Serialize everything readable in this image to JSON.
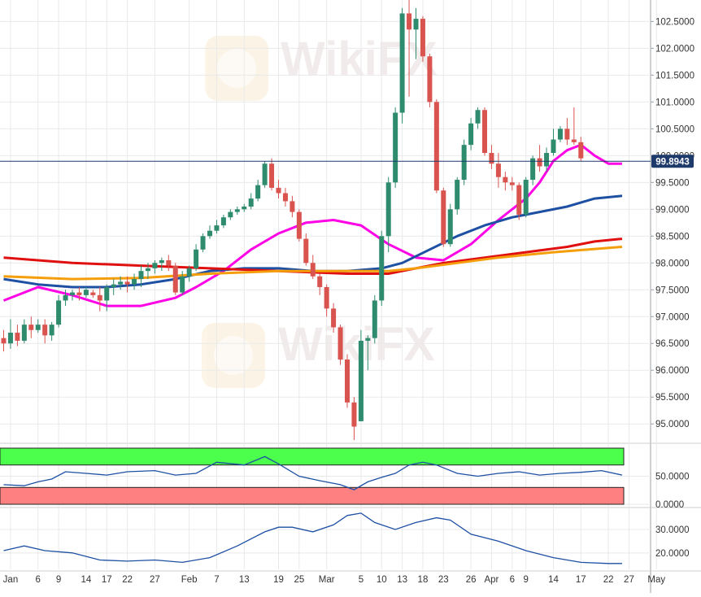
{
  "chart_data": [
    {
      "type": "candlestick",
      "title": "",
      "y_ticks": [
        "102.5000",
        "102.0000",
        "101.5000",
        "101.0000",
        "100.5000",
        "100.0000",
        "99.5000",
        "99.0000",
        "98.5000",
        "98.0000",
        "97.5000",
        "97.0000",
        "96.5000",
        "96.0000",
        "95.5000",
        "95.0000"
      ],
      "ylim": [
        94.7,
        102.9
      ],
      "current_price": "99.8943",
      "x_ticks": [
        "Jan",
        "6",
        "9",
        "14",
        "17",
        "22",
        "27",
        "Feb",
        "7",
        "13",
        "19",
        "25",
        "Mar",
        "5",
        "10",
        "13",
        "18",
        "23",
        "26",
        "Apr",
        "6",
        "9",
        "14",
        "17",
        "22",
        "27",
        "May"
      ],
      "candles": [
        [
          96.6,
          96.75,
          96.35,
          96.5
        ],
        [
          96.5,
          96.95,
          96.4,
          96.7
        ],
        [
          96.7,
          96.85,
          96.45,
          96.55
        ],
        [
          96.55,
          96.95,
          96.5,
          96.85
        ],
        [
          96.85,
          97.0,
          96.6,
          96.75
        ],
        [
          96.75,
          96.95,
          96.7,
          96.85
        ],
        [
          96.85,
          96.95,
          96.5,
          96.65
        ],
        [
          96.65,
          96.9,
          96.55,
          96.85
        ],
        [
          96.85,
          97.4,
          96.8,
          97.3
        ],
        [
          97.3,
          97.5,
          97.2,
          97.4
        ],
        [
          97.4,
          97.5,
          97.3,
          97.45
        ],
        [
          97.45,
          97.55,
          97.3,
          97.4
        ],
        [
          97.4,
          97.55,
          97.35,
          97.5
        ],
        [
          97.45,
          97.5,
          97.35,
          97.4
        ],
        [
          97.4,
          97.55,
          97.1,
          97.3
        ],
        [
          97.3,
          97.6,
          97.1,
          97.55
        ],
        [
          97.55,
          97.7,
          97.4,
          97.6
        ],
        [
          97.6,
          97.75,
          97.5,
          97.65
        ],
        [
          97.65,
          97.75,
          97.45,
          97.6
        ],
        [
          97.6,
          97.8,
          97.5,
          97.7
        ],
        [
          97.7,
          97.95,
          97.55,
          97.85
        ],
        [
          97.85,
          98.0,
          97.7,
          97.9
        ],
        [
          97.9,
          98.05,
          97.8,
          98.0
        ],
        [
          98.0,
          98.1,
          97.85,
          98.05
        ],
        [
          98.05,
          98.15,
          97.85,
          97.95
        ],
        [
          97.95,
          98.0,
          97.4,
          97.45
        ],
        [
          97.45,
          97.85,
          97.4,
          97.75
        ],
        [
          97.75,
          97.95,
          97.65,
          97.9
        ],
        [
          97.9,
          98.35,
          97.85,
          98.25
        ],
        [
          98.25,
          98.55,
          98.2,
          98.5
        ],
        [
          98.5,
          98.7,
          98.45,
          98.6
        ],
        [
          98.6,
          98.8,
          98.55,
          98.7
        ],
        [
          98.7,
          98.9,
          98.65,
          98.85
        ],
        [
          98.85,
          99.0,
          98.8,
          98.95
        ],
        [
          98.95,
          99.05,
          98.9,
          99.0
        ],
        [
          99.0,
          99.1,
          98.95,
          99.05
        ],
        [
          99.05,
          99.3,
          99.0,
          99.2
        ],
        [
          99.2,
          99.55,
          99.15,
          99.45
        ],
        [
          99.45,
          99.9,
          99.4,
          99.85
        ],
        [
          99.85,
          99.95,
          99.35,
          99.4
        ],
        [
          99.4,
          99.55,
          99.2,
          99.3
        ],
        [
          99.3,
          99.4,
          99.05,
          99.15
        ],
        [
          99.15,
          99.25,
          98.85,
          98.95
        ],
        [
          98.95,
          99.0,
          98.4,
          98.45
        ],
        [
          98.45,
          98.55,
          97.95,
          98.0
        ],
        [
          98.0,
          98.15,
          97.7,
          97.75
        ],
        [
          97.75,
          97.8,
          97.4,
          97.55
        ],
        [
          97.55,
          97.6,
          97.0,
          97.15
        ],
        [
          97.15,
          97.25,
          96.7,
          96.8
        ],
        [
          96.8,
          96.85,
          96.1,
          96.2
        ],
        [
          96.2,
          96.3,
          95.3,
          95.4
        ],
        [
          95.4,
          95.5,
          94.7,
          94.95
        ],
        [
          95.05,
          96.75,
          95.05,
          96.55
        ],
        [
          96.55,
          96.65,
          96.0,
          96.6
        ],
        [
          96.6,
          97.4,
          96.5,
          97.3
        ],
        [
          97.3,
          98.6,
          97.2,
          98.5
        ],
        [
          98.5,
          99.6,
          98.2,
          99.5
        ],
        [
          99.5,
          100.9,
          99.4,
          100.8
        ],
        [
          100.8,
          102.75,
          100.6,
          102.65
        ],
        [
          102.65,
          102.95,
          101.1,
          102.35
        ],
        [
          102.35,
          102.75,
          101.8,
          102.55
        ],
        [
          102.55,
          102.6,
          101.75,
          101.85
        ],
        [
          101.85,
          101.9,
          100.9,
          101.0
        ],
        [
          101.0,
          101.05,
          99.3,
          99.35
        ],
        [
          99.35,
          99.4,
          98.3,
          98.35
        ],
        [
          98.35,
          99.1,
          98.3,
          99.0
        ],
        [
          99.0,
          99.6,
          98.9,
          99.55
        ],
        [
          99.55,
          100.3,
          99.45,
          100.2
        ],
        [
          100.2,
          100.7,
          100.1,
          100.6
        ],
        [
          100.6,
          100.9,
          100.5,
          100.85
        ],
        [
          100.85,
          100.9,
          100.0,
          100.05
        ],
        [
          100.05,
          100.2,
          99.75,
          99.85
        ],
        [
          99.85,
          100.05,
          99.4,
          99.6
        ],
        [
          99.6,
          99.7,
          99.35,
          99.5
        ],
        [
          99.5,
          99.6,
          99.35,
          99.45
        ],
        [
          99.45,
          99.5,
          98.8,
          98.9
        ],
        [
          98.9,
          99.6,
          98.85,
          99.55
        ],
        [
          99.55,
          100.0,
          99.45,
          99.95
        ],
        [
          99.95,
          100.2,
          99.7,
          99.8
        ],
        [
          99.8,
          100.15,
          99.7,
          100.05
        ],
        [
          100.05,
          100.5,
          100.0,
          100.3
        ],
        [
          100.3,
          100.55,
          100.25,
          100.5
        ],
        [
          100.5,
          100.7,
          100.2,
          100.3
        ],
        [
          100.3,
          100.9,
          100.2,
          100.25
        ],
        [
          100.25,
          100.35,
          99.9,
          99.95
        ]
      ],
      "moving_averages": [
        {
          "color": "#ff00e6",
          "points": [
            [
              0,
              97.3
            ],
            [
              5,
              97.55
            ],
            [
              10,
              97.4
            ],
            [
              15,
              97.2
            ],
            [
              20,
              97.2
            ],
            [
              25,
              97.35
            ],
            [
              28,
              97.55
            ],
            [
              32,
              97.85
            ],
            [
              36,
              98.25
            ],
            [
              40,
              98.55
            ],
            [
              44,
              98.75
            ],
            [
              48,
              98.8
            ],
            [
              52,
              98.7
            ],
            [
              56,
              98.35
            ],
            [
              60,
              98.1
            ],
            [
              64,
              98.05
            ],
            [
              68,
              98.35
            ],
            [
              72,
              98.8
            ],
            [
              76,
              99.2
            ],
            [
              78,
              99.5
            ],
            [
              80,
              99.9
            ],
            [
              82,
              100.1
            ],
            [
              84,
              100.2
            ],
            [
              86,
              100.0
            ],
            [
              88,
              99.85
            ],
            [
              90,
              99.85
            ]
          ]
        },
        {
          "color": "#1d4fa3",
          "points": [
            [
              0,
              97.7
            ],
            [
              5,
              97.6
            ],
            [
              10,
              97.55
            ],
            [
              15,
              97.55
            ],
            [
              20,
              97.6
            ],
            [
              25,
              97.7
            ],
            [
              30,
              97.85
            ],
            [
              35,
              97.9
            ],
            [
              40,
              97.9
            ],
            [
              45,
              97.85
            ],
            [
              50,
              97.85
            ],
            [
              55,
              97.9
            ],
            [
              58,
              98.0
            ],
            [
              62,
              98.25
            ],
            [
              66,
              98.5
            ],
            [
              70,
              98.7
            ],
            [
              74,
              98.85
            ],
            [
              78,
              98.95
            ],
            [
              82,
              99.05
            ],
            [
              86,
              99.2
            ],
            [
              90,
              99.25
            ]
          ]
        },
        {
          "color": "#e01010",
          "points": [
            [
              0,
              98.1
            ],
            [
              10,
              98.0
            ],
            [
              20,
              97.95
            ],
            [
              30,
              97.9
            ],
            [
              40,
              97.85
            ],
            [
              50,
              97.8
            ],
            [
              56,
              97.8
            ],
            [
              60,
              97.9
            ],
            [
              64,
              98.0
            ],
            [
              70,
              98.1
            ],
            [
              76,
              98.2
            ],
            [
              82,
              98.3
            ],
            [
              86,
              98.4
            ],
            [
              90,
              98.45
            ]
          ]
        },
        {
          "color": "#f59e0b",
          "points": [
            [
              0,
              97.75
            ],
            [
              10,
              97.7
            ],
            [
              20,
              97.72
            ],
            [
              30,
              97.8
            ],
            [
              40,
              97.85
            ],
            [
              50,
              97.85
            ],
            [
              56,
              97.85
            ],
            [
              60,
              97.9
            ],
            [
              66,
              98.0
            ],
            [
              72,
              98.1
            ],
            [
              80,
              98.2
            ],
            [
              90,
              98.3
            ]
          ]
        }
      ]
    },
    {
      "type": "line",
      "title": "",
      "y_ticks": [
        "50.0000",
        "0.0000"
      ],
      "ylim": [
        0,
        100
      ],
      "zone_colors": {
        "upper": "#4cff4c",
        "lower": "#ff8080"
      },
      "series": [
        {
          "color": "#1d4fa3",
          "points": [
            [
              0,
              35
            ],
            [
              3,
              33
            ],
            [
              5,
              40
            ],
            [
              7,
              45
            ],
            [
              9,
              58
            ],
            [
              12,
              55
            ],
            [
              15,
              52
            ],
            [
              18,
              58
            ],
            [
              22,
              60
            ],
            [
              25,
              52
            ],
            [
              28,
              55
            ],
            [
              31,
              75
            ],
            [
              35,
              70
            ],
            [
              38,
              85
            ],
            [
              40,
              72
            ],
            [
              43,
              50
            ],
            [
              46,
              42
            ],
            [
              49,
              35
            ],
            [
              51,
              26
            ],
            [
              53,
              40
            ],
            [
              55,
              48
            ],
            [
              57,
              55
            ],
            [
              59,
              70
            ],
            [
              61,
              75
            ],
            [
              63,
              70
            ],
            [
              66,
              55
            ],
            [
              69,
              50
            ],
            [
              72,
              55
            ],
            [
              75,
              58
            ],
            [
              78,
              52
            ],
            [
              81,
              55
            ],
            [
              84,
              57
            ],
            [
              87,
              60
            ],
            [
              90,
              52
            ]
          ]
        }
      ]
    },
    {
      "type": "line",
      "title": "",
      "y_ticks": [
        "30.0000",
        "20.0000"
      ],
      "ylim": [
        13,
        38
      ],
      "series": [
        {
          "color": "#1d4fa3",
          "points": [
            [
              0,
              21
            ],
            [
              3,
              23
            ],
            [
              6,
              21
            ],
            [
              10,
              20
            ],
            [
              14,
              17
            ],
            [
              18,
              16.5
            ],
            [
              22,
              17
            ],
            [
              26,
              16
            ],
            [
              30,
              18
            ],
            [
              34,
              23
            ],
            [
              38,
              29
            ],
            [
              40,
              31
            ],
            [
              42,
              31
            ],
            [
              45,
              29
            ],
            [
              48,
              32
            ],
            [
              50,
              36
            ],
            [
              52,
              37
            ],
            [
              54,
              33
            ],
            [
              57,
              30
            ],
            [
              60,
              33
            ],
            [
              63,
              35
            ],
            [
              65,
              34
            ],
            [
              68,
              28
            ],
            [
              72,
              25
            ],
            [
              76,
              21
            ],
            [
              80,
              18
            ],
            [
              84,
              16
            ],
            [
              88,
              15.5
            ],
            [
              90,
              15.5
            ]
          ]
        }
      ]
    }
  ]
}
